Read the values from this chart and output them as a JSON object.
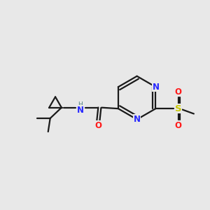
{
  "background_color": "#e8e8e8",
  "bond_color": "#1a1a1a",
  "nitrogen_color": "#2828ff",
  "oxygen_color": "#ff1a1a",
  "sulfur_color": "#c8c800",
  "figsize": [
    3.0,
    3.0
  ],
  "dpi": 100,
  "xlim": [
    0,
    10
  ],
  "ylim": [
    0,
    10
  ],
  "lw": 1.6
}
